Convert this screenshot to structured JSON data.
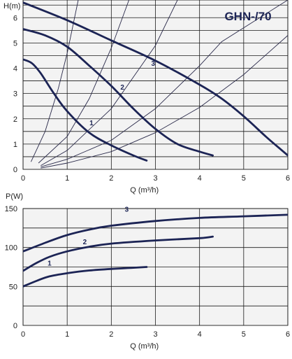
{
  "chart_data": [
    {
      "type": "line",
      "title": "GHN-/70",
      "ylabel": "H(m)",
      "xlabel": "Q (m³/h)",
      "xlim": [
        0,
        6
      ],
      "ylim": [
        0,
        6.7
      ],
      "xticks": [
        "0",
        "1",
        "2",
        "3",
        "4",
        "5",
        "6"
      ],
      "yticks": [
        "0",
        "1",
        "2",
        "3",
        "4",
        "5",
        "6"
      ],
      "grid": true,
      "series": [
        {
          "name": "1",
          "points": [
            [
              0,
              4.35
            ],
            [
              0.2,
              4.2
            ],
            [
              0.4,
              3.8
            ],
            [
              0.7,
              3.0
            ],
            [
              1.0,
              2.3
            ],
            [
              1.5,
              1.45
            ],
            [
              2.0,
              0.95
            ],
            [
              2.5,
              0.55
            ],
            [
              2.8,
              0.35
            ]
          ]
        },
        {
          "name": "2",
          "points": [
            [
              0,
              5.55
            ],
            [
              0.5,
              5.3
            ],
            [
              1.0,
              4.85
            ],
            [
              1.5,
              4.1
            ],
            [
              2.0,
              3.3
            ],
            [
              2.5,
              2.4
            ],
            [
              3.0,
              1.6
            ],
            [
              3.5,
              1.0
            ],
            [
              4.0,
              0.7
            ],
            [
              4.3,
              0.55
            ]
          ]
        },
        {
          "name": "3",
          "points": [
            [
              0,
              6.6
            ],
            [
              1.0,
              5.9
            ],
            [
              2.0,
              5.1
            ],
            [
              3.0,
              4.3
            ],
            [
              4.0,
              3.35
            ],
            [
              4.5,
              2.8
            ],
            [
              5.0,
              2.1
            ],
            [
              5.5,
              1.3
            ],
            [
              5.8,
              0.85
            ],
            [
              6.0,
              0.55
            ]
          ]
        }
      ],
      "system_curves": [
        [
          [
            0.18,
            0.3
          ],
          [
            0.5,
            1.5
          ],
          [
            0.8,
            3.2
          ],
          [
            1.0,
            4.6
          ],
          [
            1.25,
            6.7
          ]
        ],
        [
          [
            0.35,
            0.25
          ],
          [
            1.0,
            1.3
          ],
          [
            1.5,
            2.8
          ],
          [
            2.0,
            4.8
          ],
          [
            2.4,
            6.7
          ]
        ],
        [
          [
            0.4,
            0.15
          ],
          [
            1.0,
            0.75
          ],
          [
            2.0,
            2.4
          ],
          [
            3.0,
            4.9
          ],
          [
            3.5,
            6.7
          ]
        ],
        [
          [
            0.4,
            0.1
          ],
          [
            1.0,
            0.4
          ],
          [
            2.0,
            1.15
          ],
          [
            3.0,
            2.4
          ],
          [
            4.0,
            4.1
          ],
          [
            4.5,
            5.05
          ],
          [
            6.0,
            6.7
          ]
        ],
        [
          [
            0.4,
            0.05
          ],
          [
            1.0,
            0.25
          ],
          [
            2.0,
            0.7
          ],
          [
            3.0,
            1.45
          ],
          [
            4.0,
            2.45
          ],
          [
            5.0,
            3.75
          ],
          [
            6.0,
            5.3
          ]
        ]
      ]
    },
    {
      "type": "line",
      "ylabel": "P(W)",
      "xlabel": "Q (m³/h)",
      "xlim": [
        0,
        6
      ],
      "ylim": [
        0,
        150
      ],
      "xticks": [
        "0",
        "1",
        "2",
        "3",
        "4",
        "5",
        "6"
      ],
      "yticks": [
        "0",
        "50",
        "100",
        "150"
      ],
      "grid": true,
      "series": [
        {
          "name": "1",
          "points": [
            [
              0,
              50
            ],
            [
              0.3,
              57
            ],
            [
              0.6,
              63
            ],
            [
              1.0,
              67
            ],
            [
              1.5,
              70.5
            ],
            [
              2.0,
              72.5
            ],
            [
              2.5,
              74
            ],
            [
              2.8,
              75
            ]
          ]
        },
        {
          "name": "2",
          "points": [
            [
              0,
              70
            ],
            [
              0.3,
              80
            ],
            [
              0.6,
              88
            ],
            [
              1.0,
              95
            ],
            [
              1.5,
              101
            ],
            [
              2.0,
              105
            ],
            [
              3.0,
              109
            ],
            [
              4.0,
              112
            ],
            [
              4.3,
              114
            ]
          ]
        },
        {
          "name": "3",
          "points": [
            [
              0,
              95
            ],
            [
              0.5,
              106
            ],
            [
              1.0,
              116
            ],
            [
              1.5,
              123
            ],
            [
              2.0,
              128
            ],
            [
              3.0,
              134
            ],
            [
              4.0,
              138
            ],
            [
              5.0,
              140
            ],
            [
              6.0,
              142
            ]
          ]
        }
      ]
    }
  ]
}
